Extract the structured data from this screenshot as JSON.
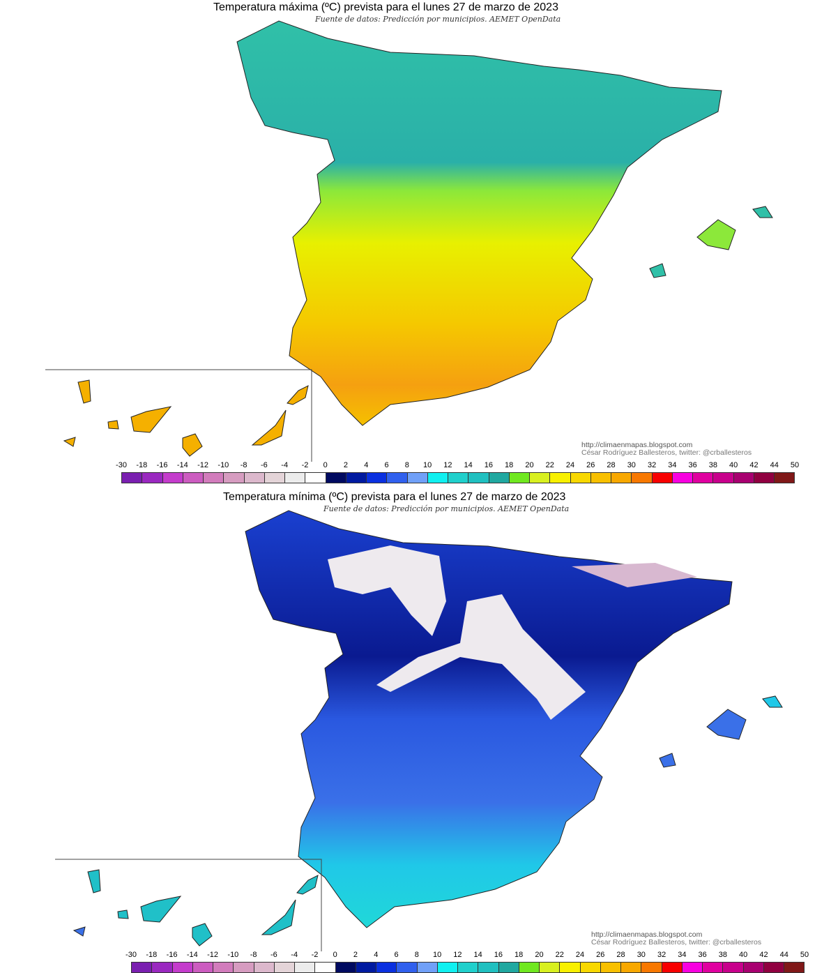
{
  "maps": [
    {
      "title": "Temperatura máxima (ºC) prevista para el lunes 27 de marzo de 2023",
      "subtitle": "Fuente de datos: Predicción por municipios. AEMET OpenData",
      "variable": "max"
    },
    {
      "title": "Temperatura mínima (ºC) prevista para el lunes 27 de marzo de 2023",
      "subtitle": "Fuente de datos: Predicción por municipios. AEMET OpenData",
      "variable": "min"
    }
  ],
  "credit": {
    "url": "http://climaenmapas.blogspot.com",
    "author": "César Rodríguez Ballesteros, twitter: @crballesteros"
  },
  "legend": {
    "labels": [
      "-30",
      "-18",
      "-16",
      "-14",
      "-12",
      "-10",
      "-8",
      "-6",
      "-4",
      "-2",
      "0",
      "2",
      "4",
      "6",
      "8",
      "10",
      "12",
      "14",
      "16",
      "18",
      "20",
      "22",
      "24",
      "26",
      "28",
      "30",
      "32",
      "34",
      "36",
      "38",
      "40",
      "42",
      "44",
      "50"
    ],
    "colors": [
      "#7a1fb0",
      "#9a28c0",
      "#c43ccc",
      "#cc5cc0",
      "#d27cbc",
      "#d69cc0",
      "#dcb8cc",
      "#e4d4d8",
      "#ececec",
      "#fefefe",
      "#000a60",
      "#001aa0",
      "#0a30e0",
      "#3060ee",
      "#70a0f8",
      "#10f0f0",
      "#20d0cc",
      "#20c0c0",
      "#20a8a0",
      "#70e820",
      "#d8f020",
      "#f8f000",
      "#f8d800",
      "#f8c000",
      "#f8a800",
      "#f87800",
      "#f80000",
      "#f800e0",
      "#e000a0",
      "#c8008c",
      "#a80070",
      "#900040",
      "#801818"
    ]
  }
}
